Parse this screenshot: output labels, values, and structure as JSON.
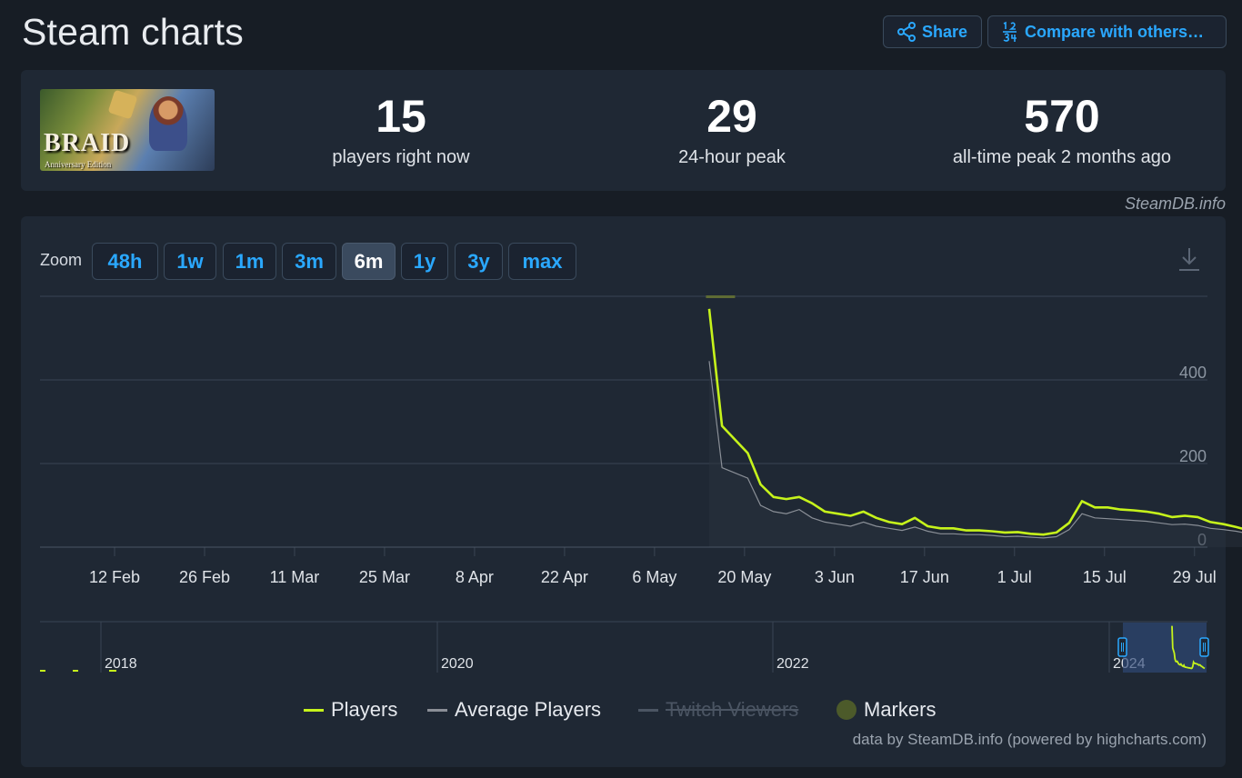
{
  "page": {
    "title": "Steam charts"
  },
  "toolbar": {
    "share_label": "Share",
    "compare_label": "Compare with others…"
  },
  "stats": {
    "players_now": {
      "value": "15",
      "label": "players right now"
    },
    "peak_24h": {
      "value": "29",
      "label": "24-hour peak"
    },
    "all_time_peak": {
      "value": "570",
      "label": "all-time peak 2 months ago"
    }
  },
  "cover": {
    "title": "BRAID",
    "subtitle": "Anniversary Edition"
  },
  "credits": {
    "top": "SteamDB.info",
    "bottom": "data by SteamDB.info (powered by highcharts.com)"
  },
  "zoom": {
    "label": "Zoom",
    "options": [
      "48h",
      "1w",
      "1m",
      "3m",
      "6m",
      "1y",
      "3y",
      "max"
    ],
    "selected": "6m"
  },
  "colors": {
    "players": "#c6f31b",
    "average": "#8a8f97",
    "twitch": "#4b5563",
    "markers": "#4c5a2a",
    "accent": "#2aa8ff"
  },
  "legend": [
    {
      "name": "Players",
      "state": "visible"
    },
    {
      "name": "Average Players",
      "state": "visible"
    },
    {
      "name": "Twitch Viewers",
      "state": "hidden"
    },
    {
      "name": "Markers",
      "state": "visible"
    }
  ],
  "chart_data": {
    "type": "line",
    "x_tick_labels": [
      "12 Feb",
      "26 Feb",
      "11 Mar",
      "25 Mar",
      "8 Apr",
      "22 Apr",
      "6 May",
      "20 May",
      "3 Jun",
      "17 Jun",
      "1 Jul",
      "15 Jul",
      "29 Jul"
    ],
    "y_tick_labels": [
      "0",
      "200",
      "400"
    ],
    "ylim": [
      0,
      600
    ],
    "grid": true,
    "legend_position": "bottom",
    "x_unit": "days since 12 Feb",
    "series": [
      {
        "name": "Players",
        "x": [
          92.5,
          94.5,
          98.5,
          100.5,
          102.5,
          104.5,
          106.5,
          108.5,
          110.5,
          112.5,
          114.5,
          116.5,
          118.5,
          120.5,
          122.5,
          124.5,
          126.5,
          128.5,
          130.5,
          132.5,
          134.5,
          136.5,
          138.5,
          140.5,
          142.5,
          144.5,
          146.5,
          148.5,
          150.5,
          152.5,
          154.5,
          156.5,
          158.5,
          160.5,
          162.5,
          164.5,
          166.5,
          168.5,
          170.5,
          172.5,
          174.5,
          176.5,
          178.5,
          180.5
        ],
        "values": [
          570,
          290,
          225,
          150,
          120,
          115,
          120,
          105,
          85,
          80,
          75,
          85,
          70,
          60,
          55,
          70,
          50,
          45,
          45,
          40,
          40,
          38,
          35,
          36,
          32,
          30,
          35,
          58,
          110,
          95,
          95,
          90,
          88,
          85,
          80,
          72,
          75,
          72,
          60,
          55,
          48,
          40,
          35,
          30
        ],
        "color": "#c6f31b"
      },
      {
        "name": "Average Players",
        "x": [
          92.5,
          94.5,
          98.5,
          100.5,
          102.5,
          104.5,
          106.5,
          108.5,
          110.5,
          112.5,
          114.5,
          116.5,
          118.5,
          120.5,
          122.5,
          124.5,
          126.5,
          128.5,
          130.5,
          132.5,
          134.5,
          136.5,
          138.5,
          140.5,
          142.5,
          144.5,
          146.5,
          148.5,
          150.5,
          152.5,
          154.5,
          156.5,
          158.5,
          160.5,
          162.5,
          164.5,
          166.5,
          168.5,
          170.5,
          172.5,
          174.5,
          176.5,
          178.5,
          180.5
        ],
        "values": [
          445,
          190,
          165,
          100,
          85,
          80,
          90,
          70,
          60,
          55,
          50,
          60,
          50,
          45,
          40,
          48,
          38,
          32,
          32,
          30,
          30,
          28,
          25,
          26,
          24,
          22,
          25,
          42,
          80,
          70,
          68,
          66,
          64,
          62,
          58,
          54,
          55,
          52,
          45,
          42,
          38,
          32,
          28,
          24
        ],
        "color": "#8a8f97"
      }
    ],
    "navigator": {
      "x_tick_labels": [
        "2018",
        "2020",
        "2022",
        "2024"
      ]
    }
  }
}
